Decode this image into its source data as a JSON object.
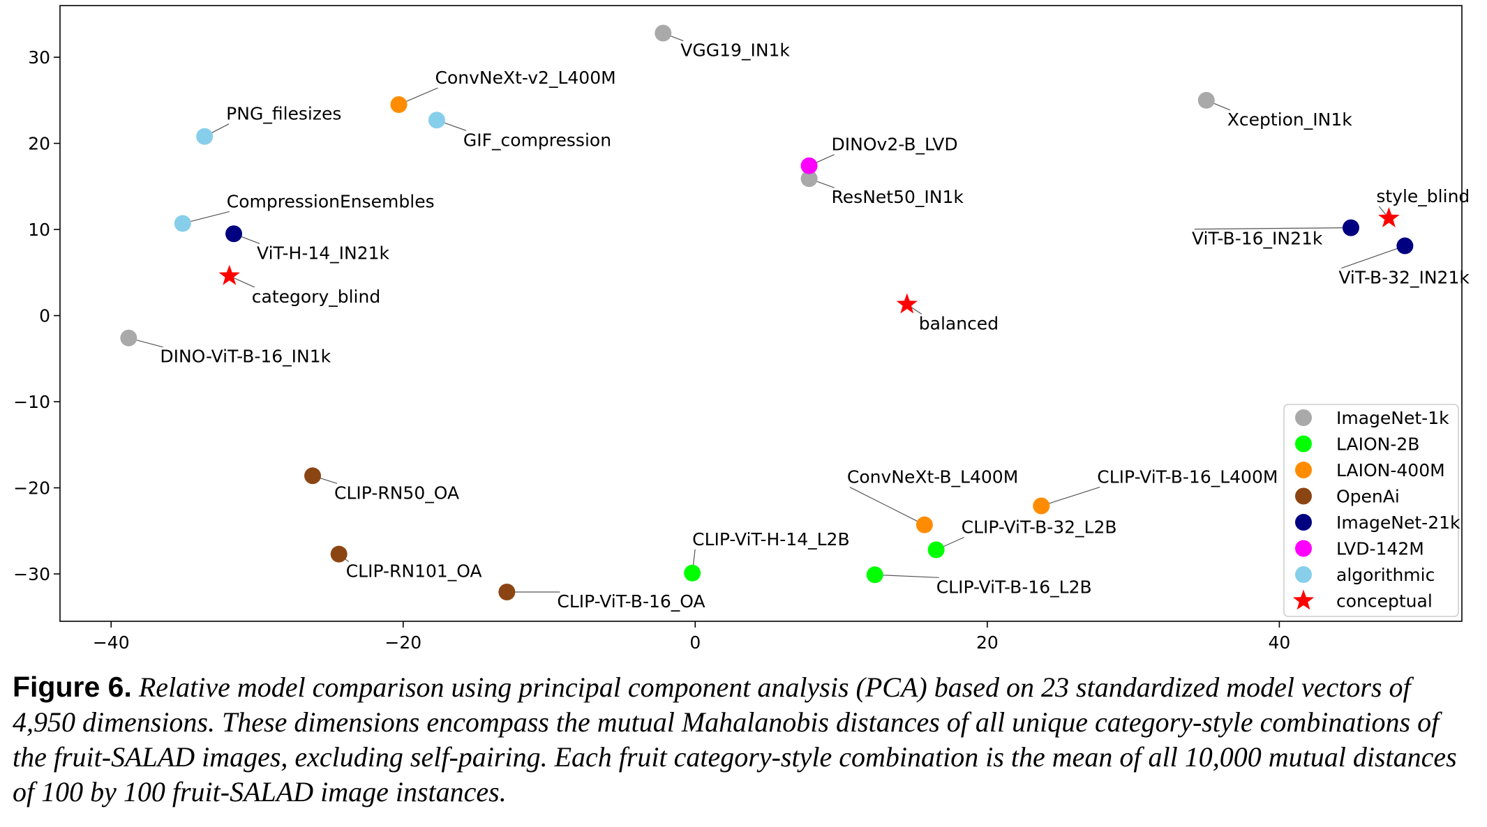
{
  "chart_data": {
    "type": "scatter",
    "title": "",
    "xlabel": "",
    "ylabel": "",
    "xlim": [
      -43.5,
      52.5
    ],
    "ylim": [
      -35.5,
      36
    ],
    "x_ticks": [
      -40,
      -20,
      0,
      20,
      40
    ],
    "x_tick_labels": [
      "−40",
      "−20",
      "0",
      "20",
      "40"
    ],
    "y_ticks": [
      30,
      20,
      10,
      0,
      -10,
      -20,
      -30
    ],
    "y_tick_labels": [
      "30",
      "20",
      "10",
      "0",
      "−10",
      "−20",
      "−30"
    ],
    "grid": false,
    "legend_position": "lower-right",
    "groups": [
      {
        "name": "ImageNet-1k",
        "color": "#a9a9a9",
        "marker": "circle"
      },
      {
        "name": "LAION-2B",
        "color": "#00ff00",
        "marker": "circle"
      },
      {
        "name": "LAION-400M",
        "color": "#ff8c00",
        "marker": "circle"
      },
      {
        "name": "OpenAi",
        "color": "#8b4513",
        "marker": "circle"
      },
      {
        "name": "ImageNet-21k",
        "color": "#000080",
        "marker": "circle"
      },
      {
        "name": "LVD-142M",
        "color": "#ff00ff",
        "marker": "circle"
      },
      {
        "name": "algorithmic",
        "color": "#87ceeb",
        "marker": "circle"
      },
      {
        "name": "conceptual",
        "color": "#ff0000",
        "marker": "star"
      }
    ],
    "points": [
      {
        "label": "VGG19_IN1k",
        "group": "ImageNet-1k",
        "x": -2.2,
        "y": 32.8
      },
      {
        "label": "Xception_IN1k",
        "group": "ImageNet-1k",
        "x": 35.0,
        "y": 25.0
      },
      {
        "label": "ResNet50_IN1k",
        "group": "ImageNet-1k",
        "x": 7.8,
        "y": 15.9
      },
      {
        "label": "DINO-ViT-B-16_IN1k",
        "group": "ImageNet-1k",
        "x": -38.8,
        "y": -2.6
      },
      {
        "label": "CLIP-ViT-H-14_L2B",
        "group": "LAION-2B",
        "x": -0.2,
        "y": -29.9
      },
      {
        "label": "CLIP-ViT-B-32_L2B",
        "group": "LAION-2B",
        "x": 16.5,
        "y": -27.2
      },
      {
        "label": "CLIP-ViT-B-16_L2B",
        "group": "LAION-2B",
        "x": 12.3,
        "y": -30.1
      },
      {
        "label": "ConvNeXt-v2_L400M",
        "group": "LAION-400M",
        "x": -20.3,
        "y": 24.5
      },
      {
        "label": "ConvNeXt-B_L400M",
        "group": "LAION-400M",
        "x": 15.7,
        "y": -24.3
      },
      {
        "label": "CLIP-ViT-B-16_L400M",
        "group": "LAION-400M",
        "x": 23.7,
        "y": -22.1
      },
      {
        "label": "CLIP-RN50_OA",
        "group": "OpenAi",
        "x": -26.2,
        "y": -18.6
      },
      {
        "label": "CLIP-RN101_OA",
        "group": "OpenAi",
        "x": -24.4,
        "y": -27.7
      },
      {
        "label": "CLIP-ViT-B-16_OA",
        "group": "OpenAi",
        "x": -12.9,
        "y": -32.1
      },
      {
        "label": "ViT-H-14_IN21k",
        "group": "ImageNet-21k",
        "x": -31.6,
        "y": 9.5
      },
      {
        "label": "ViT-B-16_IN21k",
        "group": "ImageNet-21k",
        "x": 44.9,
        "y": 10.2
      },
      {
        "label": "ViT-B-32_IN21k",
        "group": "ImageNet-21k",
        "x": 48.6,
        "y": 8.1
      },
      {
        "label": "DINOv2-B_LVD",
        "group": "LVD-142M",
        "x": 7.8,
        "y": 17.4
      },
      {
        "label": "PNG_filesizes",
        "group": "algorithmic",
        "x": -33.6,
        "y": 20.8
      },
      {
        "label": "GIF_compression",
        "group": "algorithmic",
        "x": -17.7,
        "y": 22.7
      },
      {
        "label": "CompressionEnsembles",
        "group": "algorithmic",
        "x": -35.1,
        "y": 10.7
      },
      {
        "label": "category_blind",
        "group": "conceptual",
        "x": -31.9,
        "y": 4.6
      },
      {
        "label": "style_blind",
        "group": "conceptual",
        "x": 47.5,
        "y": 11.3
      },
      {
        "label": "balanced",
        "group": "conceptual",
        "x": 14.5,
        "y": 1.3
      }
    ]
  },
  "caption": {
    "label": "Figure 6.",
    "text": "Relative model comparison using principal component analysis (PCA) based on 23 standardized model vectors of 4,950 dimensions. These dimensions encompass the mutual Mahalanobis distances of all unique category-style combinations of the fruit-SALAD images, excluding self-pairing. Each fruit category-style combination is the mean of all 10,000 mutual distances of 100 by 100 fruit-SALAD image instances."
  }
}
